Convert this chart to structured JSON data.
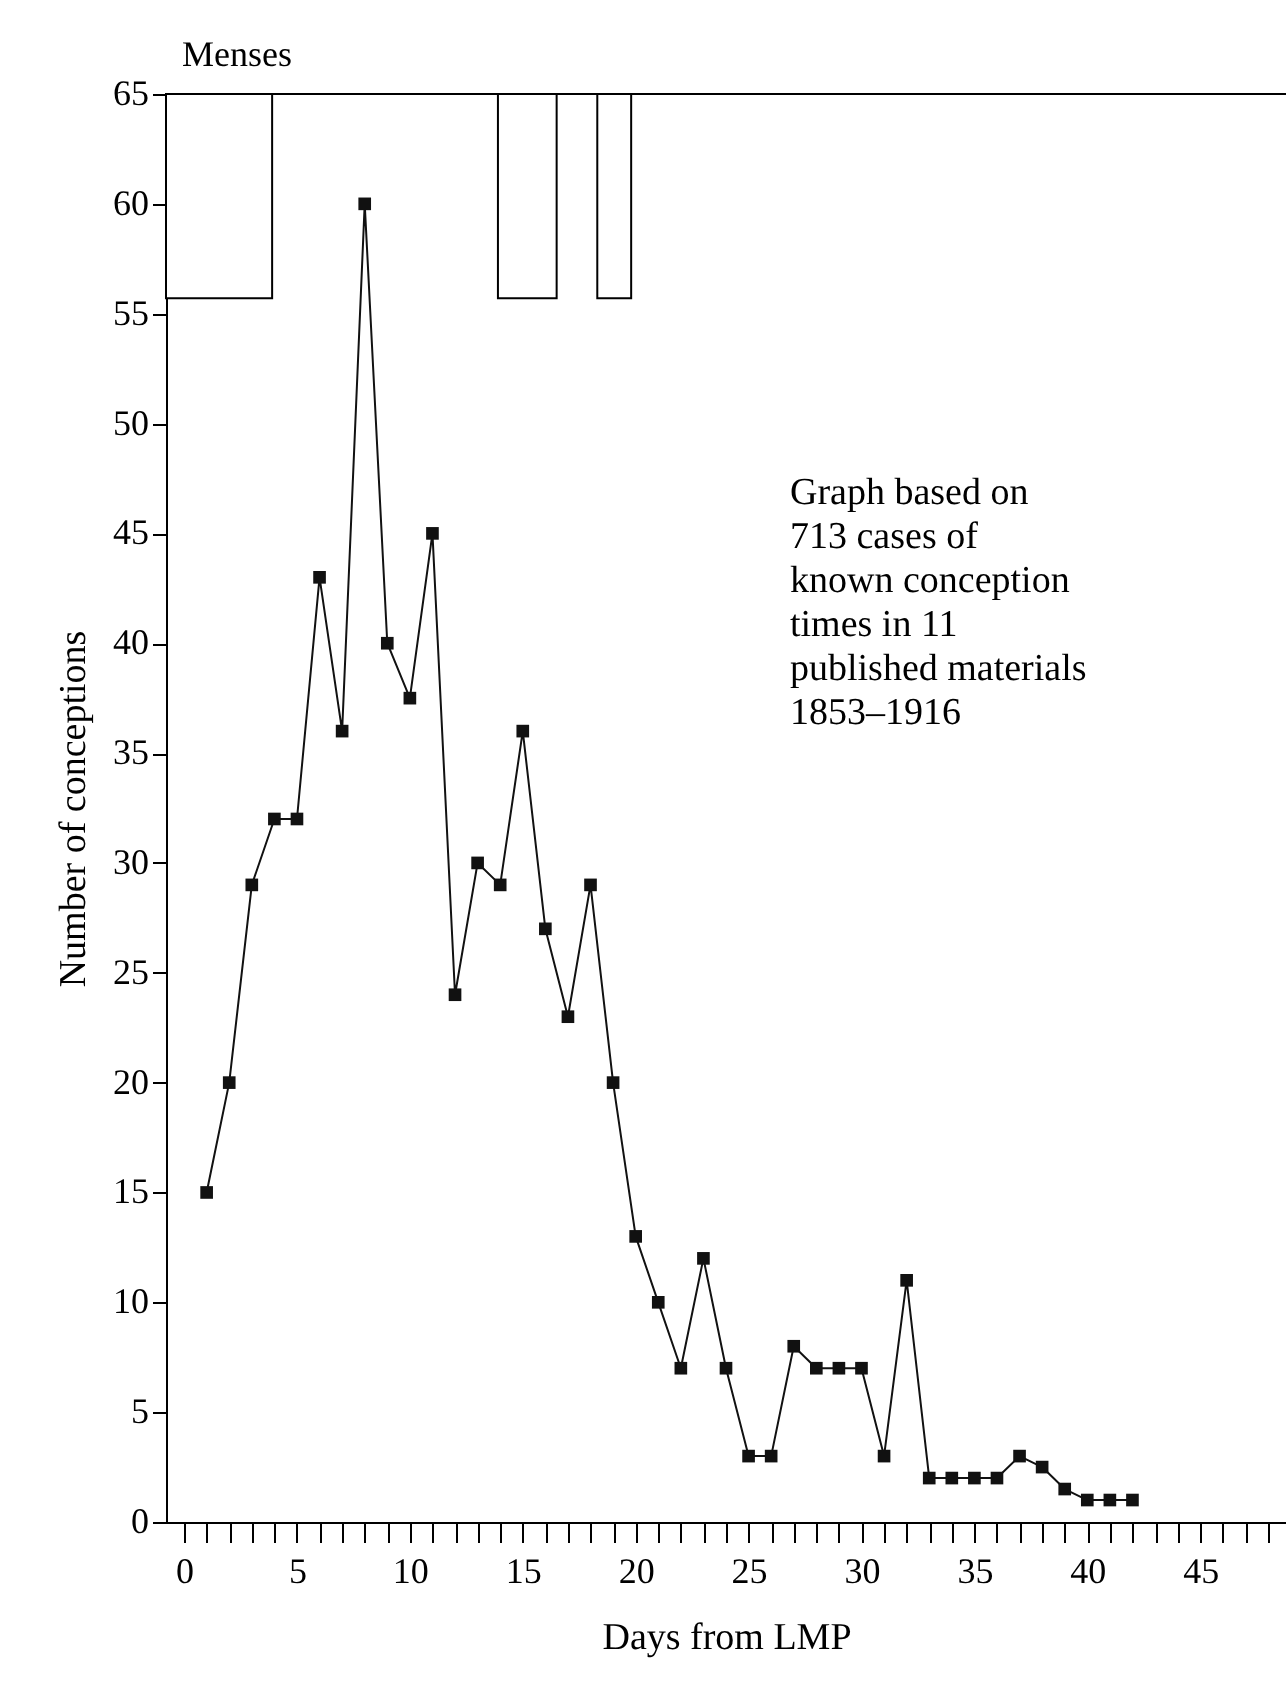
{
  "chart_data": {
    "type": "line",
    "xlabel": "Days from LMP",
    "ylabel": "Number of conceptions",
    "x": [
      1,
      2,
      3,
      4,
      5,
      6,
      7,
      8,
      9,
      10,
      11,
      12,
      13,
      14,
      15,
      16,
      17,
      18,
      19,
      20,
      21,
      22,
      23,
      24,
      25,
      26,
      27,
      28,
      29,
      30,
      31,
      32,
      33,
      34,
      35,
      36,
      37,
      38,
      39,
      40,
      41,
      42
    ],
    "values": [
      15,
      20,
      29,
      32,
      32,
      43,
      36,
      60,
      40,
      37.5,
      45,
      24,
      30,
      29,
      36,
      27,
      23,
      29,
      20,
      13,
      10,
      7,
      12,
      7,
      3,
      3,
      8,
      7,
      7,
      7,
      3,
      11,
      2,
      2,
      2,
      2,
      3,
      2.5,
      1.5,
      1,
      1,
      1
    ],
    "color": "#111111",
    "marker": "square",
    "line_style": "solid",
    "xlim": [
      -0.8,
      48.8
    ],
    "ylim": [
      0,
      65
    ],
    "xticks": [
      0,
      {
        "value": 1,
        "label": null
      },
      {
        "value": 2,
        "label": null
      },
      {
        "value": 3,
        "label": null
      },
      {
        "value": 4,
        "label": null
      },
      5,
      {
        "value": 6,
        "label": null
      },
      {
        "value": 7,
        "label": null
      },
      {
        "value": 8,
        "label": null
      },
      {
        "value": 9,
        "label": null
      },
      10,
      {
        "value": 11,
        "label": null
      },
      {
        "value": 12,
        "label": null
      },
      {
        "value": 13,
        "label": null
      },
      {
        "value": 14,
        "label": null
      },
      15,
      {
        "value": 16,
        "label": null
      },
      {
        "value": 17,
        "label": null
      },
      {
        "value": 18,
        "label": null
      },
      {
        "value": 19,
        "label": null
      },
      20,
      {
        "value": 21,
        "label": null
      },
      {
        "value": 22,
        "label": null
      },
      {
        "value": 23,
        "label": null
      },
      {
        "value": 24,
        "label": null
      },
      25,
      {
        "value": 26,
        "label": null
      },
      {
        "value": 27,
        "label": null
      },
      {
        "value": 28,
        "label": null
      },
      {
        "value": 29,
        "label": null
      },
      30,
      {
        "value": 31,
        "label": null
      },
      {
        "value": 32,
        "label": null
      },
      {
        "value": 33,
        "label": null
      },
      {
        "value": 34,
        "label": null
      },
      35,
      {
        "value": 36,
        "label": null
      },
      {
        "value": 37,
        "label": null
      },
      {
        "value": 38,
        "label": null
      },
      {
        "value": 39,
        "label": null
      },
      40,
      {
        "value": 41,
        "label": null
      },
      {
        "value": 42,
        "label": null
      },
      {
        "value": 43,
        "label": null
      },
      {
        "value": 44,
        "label": null
      },
      45,
      {
        "value": 46,
        "label": null
      },
      {
        "value": 47,
        "label": null
      },
      {
        "value": 48,
        "label": null
      }
    ],
    "yticks": [
      0,
      5,
      10,
      15,
      20,
      25,
      30,
      35,
      40,
      45,
      50,
      55,
      60,
      65
    ],
    "bands": [
      {
        "axis": "x",
        "from": -0.8,
        "to": 3.9,
        "label": "Menses"
      },
      {
        "axis": "x",
        "from": 13.9,
        "to": 16.5
      },
      {
        "axis": "x",
        "from": 18.3,
        "to": 19.8
      }
    ],
    "annotations": [
      "Graph based on\n713 cases of\nknown conception\ntimes in 11\npublished materials\n1853–1916"
    ],
    "grid": false,
    "legend": false
  }
}
